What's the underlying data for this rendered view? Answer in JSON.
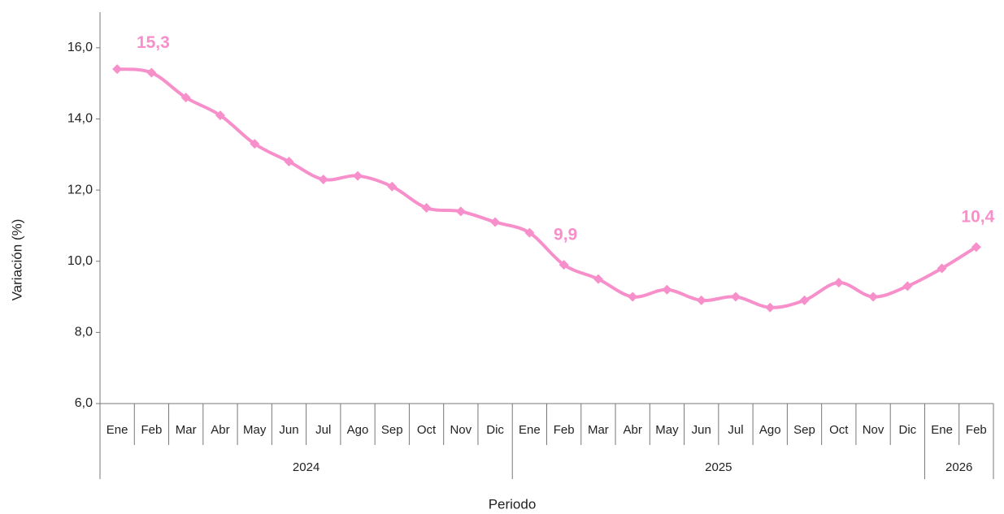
{
  "chart_data": {
    "type": "line",
    "y_label": "Variación (%)",
    "x_label": "Periodo",
    "groups": [
      {
        "label": "2024",
        "categories": [
          "Ene",
          "Feb",
          "Mar",
          "Abr",
          "May",
          "Jun",
          "Jul",
          "Ago",
          "Sep",
          "Oct",
          "Nov",
          "Dic"
        ]
      },
      {
        "label": "2025",
        "categories": [
          "Ene",
          "Feb",
          "Mar",
          "Abr",
          "May",
          "Jun",
          "Jul",
          "Ago",
          "Sep",
          "Oct",
          "Nov",
          "Dic"
        ]
      },
      {
        "label": "2026",
        "categories": [
          "Ene",
          "Feb"
        ]
      }
    ],
    "series": [
      {
        "name": "Variación",
        "color": "#f78fcb",
        "values": [
          15.4,
          15.3,
          14.6,
          14.1,
          13.3,
          12.8,
          12.3,
          12.4,
          12.1,
          11.5,
          11.4,
          11.1,
          10.8,
          9.9,
          9.5,
          9.0,
          9.2,
          8.9,
          9.0,
          8.7,
          8.9,
          9.4,
          9.0,
          9.3,
          9.8,
          10.4
        ],
        "value_labels": [
          null,
          "15,3",
          null,
          null,
          null,
          null,
          null,
          null,
          null,
          null,
          null,
          null,
          null,
          "9,9",
          null,
          null,
          null,
          null,
          null,
          null,
          null,
          null,
          null,
          null,
          null,
          "10,4"
        ]
      }
    ],
    "ylim": [
      6,
      17
    ],
    "yticks": [
      {
        "value": 6,
        "label": "6,0"
      },
      {
        "value": 8,
        "label": "8,0"
      },
      {
        "value": 10,
        "label": "10,0"
      },
      {
        "value": 12,
        "label": "12,0"
      },
      {
        "value": 14,
        "label": "14,0"
      },
      {
        "value": 16,
        "label": "16,0"
      }
    ],
    "grid": false
  }
}
